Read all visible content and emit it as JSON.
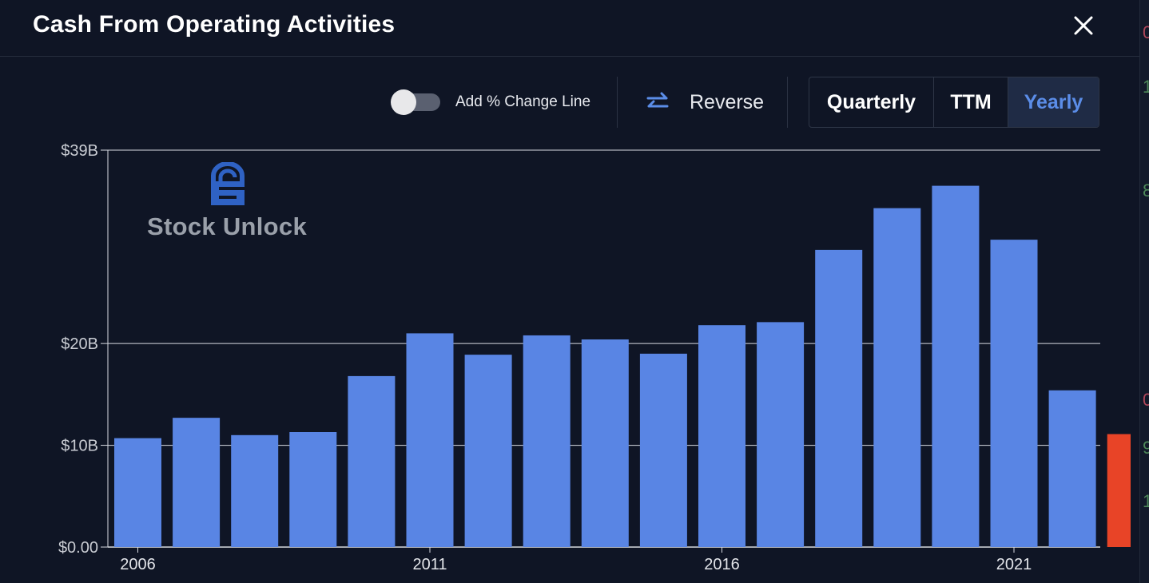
{
  "header": {
    "title": "Cash From Operating Activities"
  },
  "toolbar": {
    "toggle_label": "Add % Change Line",
    "toggle_on": false,
    "reverse_label": "Reverse",
    "periods": [
      "Quarterly",
      "TTM",
      "Yearly"
    ],
    "selected_period": "Yearly"
  },
  "watermark": {
    "text": "Stock Unlock"
  },
  "colors": {
    "background": "#0f1525",
    "bar": "#5985e4",
    "highlight_bar": "#e84427",
    "grid": "#d8dbe2",
    "accent": "#5b8de8"
  },
  "right_edge": {
    "fragments": [
      {
        "text": "0",
        "color": "#b0475a"
      },
      {
        "text": "1",
        "color": "#4e8a5a"
      },
      {
        "text": "8",
        "color": "#4e8a5a"
      },
      {
        "text": "0",
        "color": "#b0475a"
      },
      {
        "text": "9",
        "color": "#4e8a5a"
      },
      {
        "text": "1",
        "color": "#4e8a5a"
      }
    ]
  },
  "chart_data": {
    "type": "bar",
    "title": "Cash From Operating Activities",
    "x": [
      2006,
      2007,
      2008,
      2009,
      2010,
      2011,
      2012,
      2013,
      2014,
      2015,
      2016,
      2017,
      2018,
      2019,
      2020,
      2021,
      2022,
      2023
    ],
    "values_billion": [
      10.7,
      12.7,
      11.0,
      11.3,
      16.8,
      21.0,
      18.9,
      20.8,
      20.4,
      19.0,
      21.8,
      22.1,
      29.2,
      33.3,
      35.5,
      30.2,
      15.4,
      11.1
    ],
    "highlight_last": true,
    "y_ticks": [
      {
        "value": 0,
        "label": "$0.00"
      },
      {
        "value": 10,
        "label": "$10B"
      },
      {
        "value": 20,
        "label": "$20B"
      },
      {
        "value": 39,
        "label": "$39B"
      }
    ],
    "x_ticks": [
      2006,
      2011,
      2016,
      2021
    ],
    "ylim": [
      0,
      39
    ],
    "grid": true
  }
}
